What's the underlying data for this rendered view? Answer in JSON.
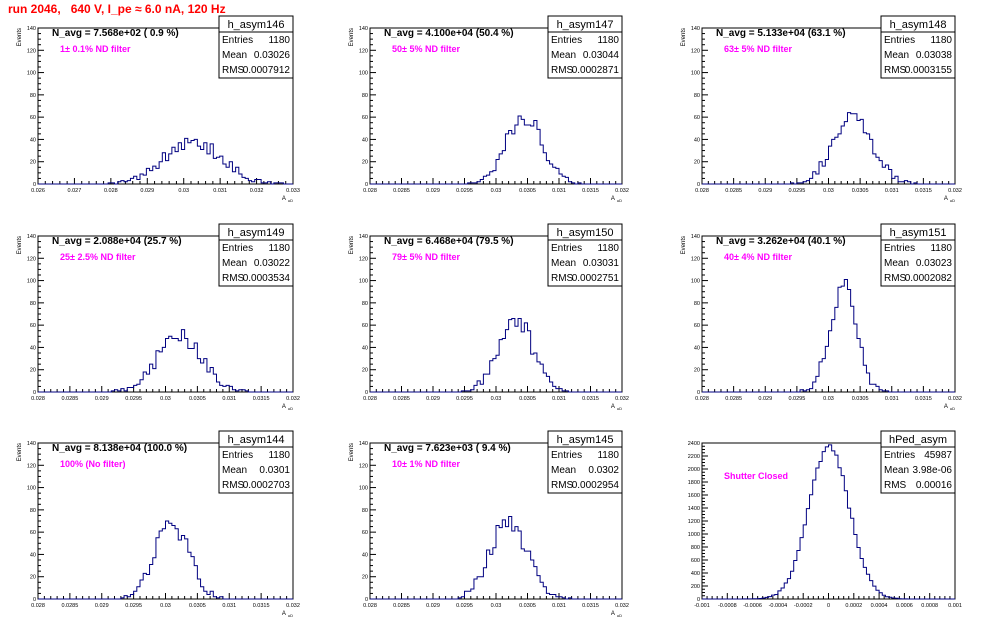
{
  "title": "run 2046,   640 V, I_pe ≈ 6.0 nA, 120 Hz",
  "colors": {
    "title": "#ff0000",
    "histogram": "#000080",
    "annotation": "#ff00ff",
    "text": "#000000"
  },
  "chart_data": [
    {
      "type": "histogram",
      "name": "h_asym146",
      "navg": "N_avg = 7.568e+02 ( 0.9 %)",
      "filter": "1± 0.1% ND filter",
      "ylabel": "Events",
      "xlabel": "A_uD",
      "xlim": [
        0.026,
        0.033
      ],
      "ylim": [
        0,
        140
      ],
      "xticks": [
        "0.026",
        "0.027",
        "0.028",
        "0.029",
        "0.03",
        "0.031",
        "0.032",
        "0.033"
      ],
      "xtick_values": [
        0.026,
        0.027,
        0.028,
        0.029,
        0.03,
        0.031,
        0.032,
        0.033
      ],
      "yticks": [
        "0",
        "20",
        "40",
        "60",
        "80",
        "100",
        "120",
        "140"
      ],
      "ytick_values": [
        0,
        20,
        40,
        60,
        80,
        100,
        120,
        140
      ],
      "stats": {
        "entries": "1180",
        "mean": "0.03026",
        "rms": "0.0007912"
      },
      "mean": 0.03026,
      "rms": 0.0007912,
      "peak": 38,
      "entries": 1180,
      "seed": 146
    },
    {
      "type": "histogram",
      "name": "h_asym147",
      "navg": "N_avg = 4.100e+04 (50.4 %)",
      "filter": "50± 5% ND filter",
      "ylabel": "Events",
      "xlabel": "A_uD",
      "xlim": [
        0.028,
        0.032
      ],
      "ylim": [
        0,
        140
      ],
      "xticks": [
        "0.028",
        "0.0285",
        "0.029",
        "0.0295",
        "0.03",
        "0.0305",
        "0.031",
        "0.0315",
        "0.032"
      ],
      "xtick_values": [
        0.028,
        0.0285,
        0.029,
        0.0295,
        0.03,
        0.0305,
        0.031,
        0.0315,
        0.032
      ],
      "yticks": [
        "0",
        "20",
        "40",
        "60",
        "80",
        "100",
        "120",
        "140"
      ],
      "ytick_values": [
        0,
        20,
        40,
        60,
        80,
        100,
        120,
        140
      ],
      "stats": {
        "entries": "1180",
        "mean": "0.03044",
        "rms": "0.0002871"
      },
      "mean": 0.03044,
      "rms": 0.0002871,
      "peak": 62,
      "entries": 1180,
      "seed": 147
    },
    {
      "type": "histogram",
      "name": "h_asym148",
      "navg": "N_avg = 5.133e+04 (63.1 %)",
      "filter": "63± 5% ND filter",
      "ylabel": "Events",
      "xlabel": "A_uD",
      "xlim": [
        0.028,
        0.032
      ],
      "ylim": [
        0,
        140
      ],
      "xticks": [
        "0.028",
        "0.0285",
        "0.029",
        "0.0295",
        "0.03",
        "0.0305",
        "0.031",
        "0.0315",
        "0.032"
      ],
      "xtick_values": [
        0.028,
        0.0285,
        0.029,
        0.0295,
        0.03,
        0.0305,
        0.031,
        0.0315,
        0.032
      ],
      "yticks": [
        "0",
        "20",
        "40",
        "60",
        "80",
        "100",
        "120",
        "140"
      ],
      "ytick_values": [
        0,
        20,
        40,
        60,
        80,
        100,
        120,
        140
      ],
      "stats": {
        "entries": "1180",
        "mean": "0.03038",
        "rms": "0.0003155"
      },
      "mean": 0.03038,
      "rms": 0.0003155,
      "peak": 58,
      "entries": 1180,
      "seed": 148
    },
    {
      "type": "histogram",
      "name": "h_asym149",
      "navg": "N_avg = 2.088e+04 (25.7 %)",
      "filter": "25± 2.5% ND filter",
      "ylabel": "Events",
      "xlabel": "A_uD",
      "xlim": [
        0.028,
        0.032
      ],
      "ylim": [
        0,
        140
      ],
      "xticks": [
        "0.028",
        "0.0285",
        "0.029",
        "0.0295",
        "0.03",
        "0.0305",
        "0.031",
        "0.0315",
        "0.032"
      ],
      "xtick_values": [
        0.028,
        0.0285,
        0.029,
        0.0295,
        0.03,
        0.0305,
        0.031,
        0.0315,
        0.032
      ],
      "yticks": [
        "0",
        "20",
        "40",
        "60",
        "80",
        "100",
        "120",
        "140"
      ],
      "ytick_values": [
        0,
        20,
        40,
        60,
        80,
        100,
        120,
        140
      ],
      "stats": {
        "entries": "1180",
        "mean": "0.03022",
        "rms": "0.0003534"
      },
      "mean": 0.03022,
      "rms": 0.0003534,
      "peak": 50,
      "entries": 1180,
      "seed": 149
    },
    {
      "type": "histogram",
      "name": "h_asym150",
      "navg": "N_avg = 6.468e+04 (79.5 %)",
      "filter": "79± 5% ND filter",
      "ylabel": "Events",
      "xlabel": "A_uD",
      "xlim": [
        0.028,
        0.032
      ],
      "ylim": [
        0,
        140
      ],
      "xticks": [
        "0.028",
        "0.0285",
        "0.029",
        "0.0295",
        "0.03",
        "0.0305",
        "0.031",
        "0.0315",
        "0.032"
      ],
      "xtick_values": [
        0.028,
        0.0285,
        0.029,
        0.0295,
        0.03,
        0.0305,
        0.031,
        0.0315,
        0.032
      ],
      "yticks": [
        "0",
        "20",
        "40",
        "60",
        "80",
        "100",
        "120",
        "140"
      ],
      "ytick_values": [
        0,
        20,
        40,
        60,
        80,
        100,
        120,
        140
      ],
      "stats": {
        "entries": "1180",
        "mean": "0.03031",
        "rms": "0.0002751"
      },
      "mean": 0.03031,
      "rms": 0.0002751,
      "peak": 65,
      "entries": 1180,
      "seed": 150
    },
    {
      "type": "histogram",
      "name": "h_asym151",
      "navg": "N_avg = 3.262e+04 (40.1 %)",
      "filter": "40± 4% ND filter",
      "ylabel": "Events",
      "xlabel": "A_uD",
      "xlim": [
        0.028,
        0.032
      ],
      "ylim": [
        0,
        140
      ],
      "xticks": [
        "0.028",
        "0.0285",
        "0.029",
        "0.0295",
        "0.03",
        "0.0305",
        "0.031",
        "0.0315",
        "0.032"
      ],
      "xtick_values": [
        0.028,
        0.0285,
        0.029,
        0.0295,
        0.03,
        0.0305,
        0.031,
        0.0315,
        0.032
      ],
      "yticks": [
        "0",
        "20",
        "40",
        "60",
        "80",
        "100",
        "120",
        "140"
      ],
      "ytick_values": [
        0,
        20,
        40,
        60,
        80,
        100,
        120,
        140
      ],
      "stats": {
        "entries": "1180",
        "mean": "0.03023",
        "rms": "0.0002082"
      },
      "mean": 0.03023,
      "rms": 0.0002082,
      "peak": 95,
      "entries": 1180,
      "seed": 151
    },
    {
      "type": "histogram",
      "name": "h_asym144",
      "navg": "N_avg = 8.138e+04 (100.0 %)",
      "filter": "100% (No filter)",
      "ylabel": "Events",
      "xlabel": "A_uD",
      "xlim": [
        0.028,
        0.032
      ],
      "ylim": [
        0,
        140
      ],
      "xticks": [
        "0.028",
        "0.0285",
        "0.029",
        "0.0295",
        "0.03",
        "0.0305",
        "0.031",
        "0.0315",
        "0.032"
      ],
      "xtick_values": [
        0.028,
        0.0285,
        0.029,
        0.0295,
        0.03,
        0.0305,
        0.031,
        0.0315,
        0.032
      ],
      "yticks": [
        "0",
        "20",
        "40",
        "60",
        "80",
        "100",
        "120",
        "140"
      ],
      "ytick_values": [
        0,
        20,
        40,
        60,
        80,
        100,
        120,
        140
      ],
      "stats": {
        "entries": "1180",
        "mean": "0.0301",
        "rms": "0.0002703"
      },
      "mean": 0.0301,
      "rms": 0.0002703,
      "peak": 68,
      "entries": 1180,
      "seed": 144
    },
    {
      "type": "histogram",
      "name": "h_asym145",
      "navg": "N_avg = 7.623e+03 ( 9.4 %)",
      "filter": "10± 1% ND filter",
      "ylabel": "Events",
      "xlabel": "A_uD",
      "xlim": [
        0.028,
        0.032
      ],
      "ylim": [
        0,
        140
      ],
      "xticks": [
        "0.028",
        "0.0285",
        "0.029",
        "0.0295",
        "0.03",
        "0.0305",
        "0.031",
        "0.0315",
        "0.032"
      ],
      "xtick_values": [
        0.028,
        0.0285,
        0.029,
        0.0295,
        0.03,
        0.0305,
        0.031,
        0.0315,
        0.032
      ],
      "yticks": [
        "0",
        "20",
        "40",
        "60",
        "80",
        "100",
        "120",
        "140"
      ],
      "ytick_values": [
        0,
        20,
        40,
        60,
        80,
        100,
        120,
        140
      ],
      "stats": {
        "entries": "1180",
        "mean": "0.0302",
        "rms": "0.0002954"
      },
      "mean": 0.0302,
      "rms": 0.0002954,
      "peak": 70,
      "entries": 1180,
      "seed": 145
    },
    {
      "type": "histogram",
      "name": "hPed_asym",
      "navg": "",
      "filter": "Shutter Closed",
      "ylabel": "",
      "xlabel": "",
      "xlim": [
        -0.001,
        0.001
      ],
      "ylim": [
        0,
        2400
      ],
      "xticks": [
        "-0.001",
        "-0.0008",
        "-0.0006",
        "-0.0004",
        "-0.0002",
        "0",
        "0.0002",
        "0.0004",
        "0.0006",
        "0.0008",
        "0.001"
      ],
      "xtick_values": [
        -0.001,
        -0.0008,
        -0.0006,
        -0.0004,
        -0.0002,
        0,
        0.0002,
        0.0004,
        0.0006,
        0.0008,
        0.001
      ],
      "yticks": [
        "0",
        "200",
        "400",
        "600",
        "800",
        "1000",
        "1200",
        "1400",
        "1600",
        "1800",
        "2000",
        "2200",
        "2400"
      ],
      "ytick_values": [
        0,
        200,
        400,
        600,
        800,
        1000,
        1200,
        1400,
        1600,
        1800,
        2000,
        2200,
        2400
      ],
      "stats": {
        "entries": "45987",
        "mean": "3.98e-06",
        "rms": "0.00016"
      },
      "mean": 3.98e-06,
      "rms": 0.00016,
      "peak": 2330,
      "entries": 45987,
      "seed": 999
    }
  ]
}
